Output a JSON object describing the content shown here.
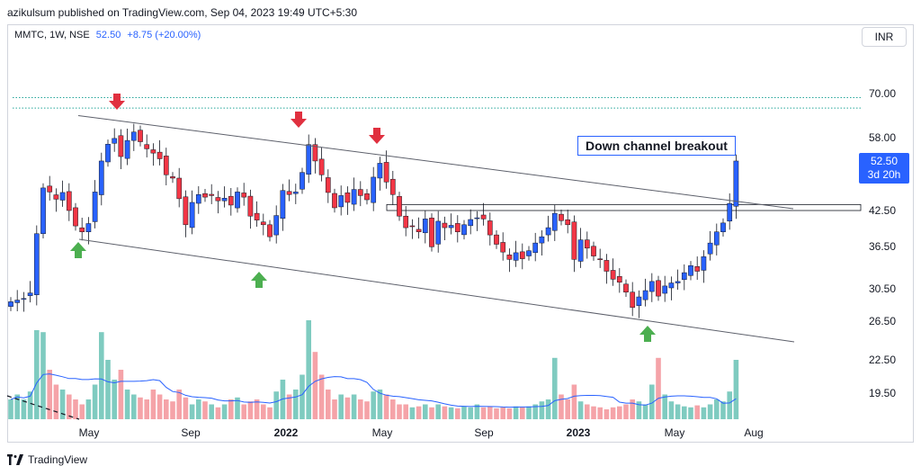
{
  "header": {
    "publisher_line": "azikulsum published on TradingView.com, Sep 04, 2023 19:49 UTC+5:30"
  },
  "legend": {
    "symbol": "MMTC, 1W, NSE",
    "price": "52.50",
    "change": "+8.75 (+20.00%)"
  },
  "currency_button": "INR",
  "annotation": "Down channel breakout",
  "price_badge": {
    "price": "52.50",
    "countdown": "3d 20h"
  },
  "footer": {
    "brand": "TradingView"
  },
  "colors": {
    "up": "#2962ff",
    "down": "#f23645",
    "vol_up": "#7fcbc0",
    "vol_down": "#f5a3a8",
    "arrow_down": "#e0303f",
    "arrow_up": "#4caf50",
    "ma": "#2962ff",
    "level": "#26a69a"
  },
  "chart_data": {
    "type": "candlestick",
    "interval": "1W",
    "y_scale": "log",
    "y_ticks": [
      "70.00",
      "58.00",
      "42.50",
      "36.50",
      "30.50",
      "26.50",
      "22.50",
      "19.50"
    ],
    "x_ticks": [
      "May",
      "Sep",
      "2022",
      "May",
      "Sep",
      "2023",
      "May",
      "Aug"
    ],
    "x_tick_bold": [
      false,
      false,
      true,
      false,
      false,
      true,
      false,
      false
    ],
    "ohlc_closes": [
      28.8,
      29.0,
      29.2,
      29.9,
      38.5,
      46.8,
      46.0,
      44.6,
      45.9,
      42.5,
      39.8,
      38.8,
      40.2,
      46.0,
      52.5,
      56.4,
      57.8,
      53.5,
      57.3,
      59.4,
      57.0,
      55.3,
      54.3,
      53.0,
      49.5,
      48.8,
      44.7,
      40.0,
      44.0,
      45.5,
      45.0,
      45.3,
      44.3,
      44.8,
      43.5,
      46.0,
      45.0,
      41.5,
      40.8,
      40.0,
      38.0,
      41.6,
      46.3,
      45.5,
      46.0,
      50.0,
      56.3,
      52.5,
      49.5,
      45.9,
      43.0,
      45.3,
      44.0,
      46.5,
      45.3,
      44.5,
      49.0,
      52.0,
      48.0,
      45.5,
      41.5,
      39.5,
      39.7,
      38.8,
      41.0,
      36.4,
      40.6,
      39.5,
      39.9,
      38.8,
      40.0,
      40.9,
      41.2,
      41.0,
      38.3,
      36.8,
      35.6,
      34.5,
      35.5,
      34.6,
      35.8,
      37.0,
      38.0,
      39.5,
      42.0,
      40.7,
      40.0,
      34.5,
      37.5,
      36.2,
      35.0,
      34.5,
      32.8,
      31.7,
      31.3,
      30.0,
      28.1,
      29.4,
      30.2,
      31.4,
      29.5,
      30.8,
      31.2,
      31.4,
      32.6,
      33.6,
      32.8,
      34.9,
      37.0,
      38.8,
      40.3,
      43.8,
      52.5
    ],
    "volume_relative": [
      0.2,
      0.25,
      0.2,
      0.28,
      0.9,
      0.88,
      0.5,
      0.35,
      0.3,
      0.25,
      0.2,
      0.15,
      0.2,
      0.35,
      0.88,
      0.6,
      0.4,
      0.5,
      0.3,
      0.25,
      0.22,
      0.2,
      0.3,
      0.25,
      0.2,
      0.18,
      0.3,
      0.22,
      0.15,
      0.2,
      0.18,
      0.15,
      0.12,
      0.15,
      0.2,
      0.22,
      0.15,
      0.18,
      0.2,
      0.15,
      0.12,
      0.28,
      0.4,
      0.25,
      0.3,
      0.45,
      1.0,
      0.68,
      0.45,
      0.3,
      0.2,
      0.25,
      0.22,
      0.25,
      0.2,
      0.18,
      0.28,
      0.3,
      0.25,
      0.2,
      0.15,
      0.15,
      0.12,
      0.13,
      0.15,
      0.12,
      0.15,
      0.13,
      0.12,
      0.11,
      0.13,
      0.12,
      0.15,
      0.12,
      0.13,
      0.11,
      0.12,
      0.11,
      0.13,
      0.12,
      0.13,
      0.15,
      0.18,
      0.2,
      0.62,
      0.25,
      0.2,
      0.35,
      0.18,
      0.15,
      0.13,
      0.12,
      0.1,
      0.12,
      0.13,
      0.15,
      0.2,
      0.18,
      0.15,
      0.35,
      0.62,
      0.25,
      0.18,
      0.15,
      0.13,
      0.12,
      0.14,
      0.12,
      0.15,
      0.2,
      0.18,
      0.28,
      0.6
    ],
    "annotations": {
      "channel_upper": [
        [
          0,
          63.0
        ],
        [
          110,
          44.0
        ]
      ],
      "channel_lower": [
        [
          9,
          37.8
        ],
        [
          110,
          24.8
        ]
      ],
      "resistance_zone": [
        42.5,
        43.6
      ],
      "dotted_levels": [
        68.8,
        65.8
      ],
      "down_arrows": [
        16,
        42,
        52
      ],
      "up_arrows": [
        10,
        35,
        90
      ]
    }
  }
}
